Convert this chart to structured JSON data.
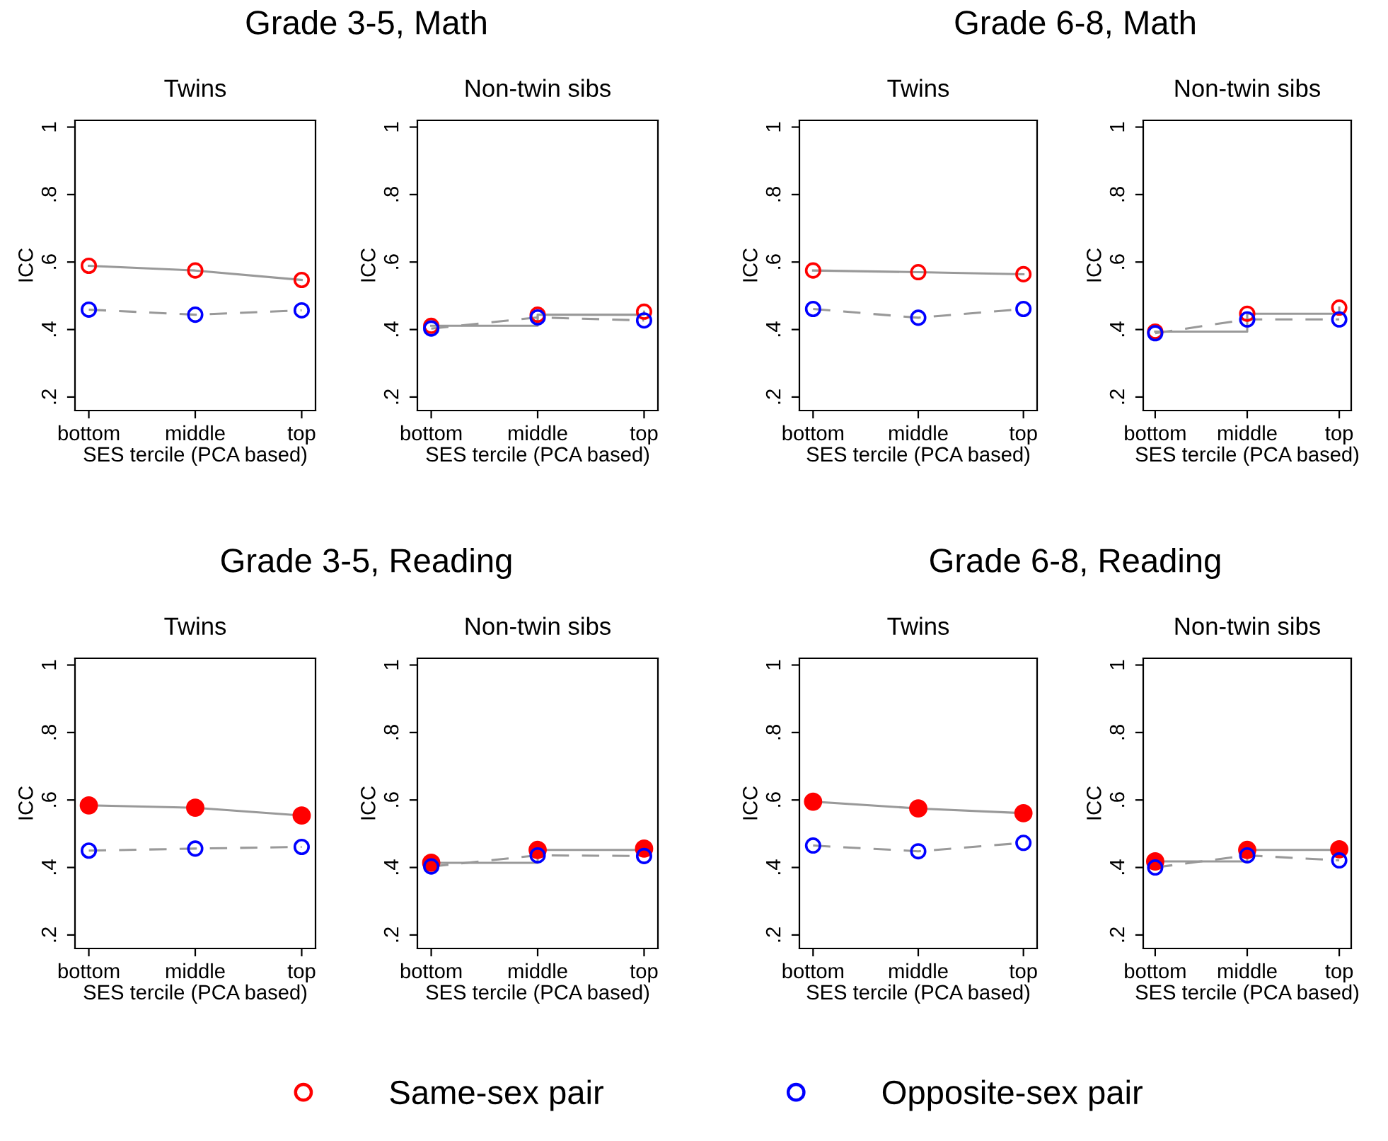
{
  "chart_data": [
    {
      "type": "line",
      "title": "Grade 3-5, Math",
      "subtitle": "Twins",
      "xlabel": "SES tercile (PCA based)",
      "ylabel": "ICC",
      "categories": [
        "bottom",
        "middle",
        "top"
      ],
      "ylim": [
        0.16,
        1.02
      ],
      "yticks": [
        {
          "value": 0.2,
          "label": ".2"
        },
        {
          "value": 0.4,
          "label": ".4"
        },
        {
          "value": 0.6,
          "label": ".6"
        },
        {
          "value": 0.8,
          "label": ".8"
        },
        1
      ],
      "grid": false,
      "marker": "circle",
      "legend": "bottom",
      "series": [
        {
          "name": "Same-sex pair",
          "color": "#ff0000",
          "line_style": "solid",
          "values": [
            0.589,
            0.575,
            0.547
          ]
        },
        {
          "name": "Opposite-sex pair",
          "color": "#0000ff",
          "line_style": "dashed",
          "values": [
            0.459,
            0.444,
            0.457
          ]
        }
      ]
    },
    {
      "type": "line",
      "subtitle": "Non-twin sibs",
      "xlabel": "SES tercile (PCA based)",
      "ylabel": "ICC",
      "categories": [
        "bottom",
        "middle",
        "top"
      ],
      "ylim": [
        0.16,
        1.02
      ],
      "yticks": [
        {
          "value": 0.2,
          "label": ".2"
        },
        {
          "value": 0.4,
          "label": ".4"
        },
        {
          "value": 0.6,
          "label": ".6"
        },
        {
          "value": 0.8,
          "label": ".8"
        },
        1
      ],
      "grid": false,
      "marker": "circle",
      "series": [
        {
          "type": "step",
          "color": "#ff0000",
          "line_style": "solid",
          "values": [
            0.411,
            0.444,
            0.453
          ]
        },
        {
          "color": "#0000ff",
          "line_style": "dashed",
          "values": [
            0.403,
            0.436,
            0.427
          ]
        }
      ]
    },
    {
      "type": "line",
      "title": "Grade 6-8, Math",
      "subtitle": "Twins",
      "xlabel": "SES tercile (PCA based)",
      "ylabel": "ICC",
      "categories": [
        "bottom",
        "middle",
        "top"
      ],
      "ylim": [
        0.16,
        1.02
      ],
      "yticks": [
        {
          "value": 0.2,
          "label": ".2"
        },
        {
          "value": 0.4,
          "label": ".4"
        },
        {
          "value": 0.6,
          "label": ".6"
        },
        {
          "value": 0.8,
          "label": ".8"
        },
        1
      ],
      "grid": false,
      "marker": "circle",
      "series": [
        {
          "color": "#ff0000",
          "line_style": "solid",
          "values": [
            0.575,
            0.57,
            0.564
          ]
        },
        {
          "color": "#0000ff",
          "line_style": "dashed",
          "values": [
            0.461,
            0.435,
            0.461
          ]
        }
      ]
    },
    {
      "type": "line",
      "subtitle": "Non-twin sibs",
      "xlabel": "SES tercile (PCA based)",
      "ylabel": "ICC",
      "categories": [
        "bottom",
        "middle",
        "top"
      ],
      "ylim": [
        0.16,
        1.02
      ],
      "yticks": [
        {
          "value": 0.2,
          "label": ".2"
        },
        {
          "value": 0.4,
          "label": ".4"
        },
        {
          "value": 0.6,
          "label": ".6"
        },
        {
          "value": 0.8,
          "label": ".8"
        },
        1
      ],
      "grid": false,
      "marker": "circle",
      "series": [
        {
          "type": "step",
          "color": "#ff0000",
          "line_style": "solid",
          "values": [
            0.394,
            0.447,
            0.465
          ]
        },
        {
          "color": "#0000ff",
          "line_style": "dashed",
          "values": [
            0.389,
            0.43,
            0.43
          ]
        }
      ]
    },
    {
      "type": "line",
      "title": "Grade 3-5, Reading",
      "subtitle": "Twins",
      "xlabel": "SES tercile (PCA based)",
      "ylabel": "ICC",
      "categories": [
        "bottom",
        "middle",
        "top"
      ],
      "ylim": [
        0.16,
        1.02
      ],
      "yticks": [
        {
          "value": 0.2,
          "label": ".2"
        },
        {
          "value": 0.4,
          "label": ".4"
        },
        {
          "value": 0.6,
          "label": ".6"
        },
        {
          "value": 0.8,
          "label": ".8"
        },
        1
      ],
      "grid": false,
      "marker": "circle",
      "series": [
        {
          "color": "#ff0000",
          "line_style": "solid",
          "values": [
            0.584,
            0.577,
            0.554
          ]
        },
        {
          "color": "#0000ff",
          "line_style": "dashed",
          "values": [
            0.45,
            0.456,
            0.461
          ]
        }
      ]
    },
    {
      "type": "line",
      "subtitle": "Non-twin sibs",
      "xlabel": "SES tercile (PCA based)",
      "ylabel": "ICC",
      "categories": [
        "bottom",
        "middle",
        "top"
      ],
      "ylim": [
        0.16,
        1.02
      ],
      "yticks": [
        {
          "value": 0.2,
          "label": ".2"
        },
        {
          "value": 0.4,
          "label": ".4"
        },
        {
          "value": 0.6,
          "label": ".6"
        },
        {
          "value": 0.8,
          "label": ".8"
        },
        1
      ],
      "grid": false,
      "marker": "circle",
      "series": [
        {
          "type": "step",
          "color": "#ff0000",
          "line_style": "solid",
          "values": [
            0.414,
            0.452,
            0.456
          ]
        },
        {
          "color": "#0000ff",
          "line_style": "dashed",
          "values": [
            0.403,
            0.436,
            0.434
          ]
        }
      ]
    },
    {
      "type": "line",
      "title": "Grade 6-8, Reading",
      "subtitle": "Twins",
      "xlabel": "SES tercile (PCA based)",
      "ylabel": "ICC",
      "categories": [
        "bottom",
        "middle",
        "top"
      ],
      "ylim": [
        0.16,
        1.02
      ],
      "yticks": [
        {
          "value": 0.2,
          "label": ".2"
        },
        {
          "value": 0.4,
          "label": ".4"
        },
        {
          "value": 0.6,
          "label": ".6"
        },
        {
          "value": 0.8,
          "label": ".8"
        },
        1
      ],
      "grid": false,
      "marker": "circle",
      "series": [
        {
          "color": "#ff0000",
          "line_style": "solid",
          "values": [
            0.595,
            0.575,
            0.561
          ]
        },
        {
          "color": "#0000ff",
          "line_style": "dashed",
          "values": [
            0.465,
            0.448,
            0.473
          ]
        }
      ]
    },
    {
      "type": "line",
      "subtitle": "Non-twin sibs",
      "xlabel": "SES tercile (PCA based)",
      "ylabel": "ICC",
      "categories": [
        "bottom",
        "middle",
        "top"
      ],
      "ylim": [
        0.16,
        1.02
      ],
      "yticks": [
        {
          "value": 0.2,
          "label": ".2"
        },
        {
          "value": 0.4,
          "label": ".4"
        },
        {
          "value": 0.6,
          "label": ".6"
        },
        {
          "value": 0.8,
          "label": ".8"
        },
        1
      ],
      "grid": false,
      "marker": "circle",
      "series": [
        {
          "type": "step",
          "color": "#ff0000",
          "line_style": "solid",
          "values": [
            0.418,
            0.452,
            0.454
          ]
        },
        {
          "color": "#0000ff",
          "line_style": "dashed",
          "values": [
            0.4,
            0.436,
            0.421
          ]
        }
      ]
    }
  ]
}
